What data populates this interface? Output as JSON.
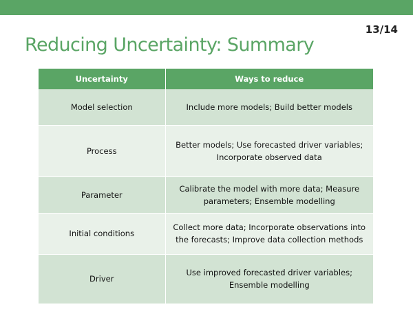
{
  "slide": {
    "title": "Reducing Uncertainty: Summary",
    "page_number": "13/14",
    "accent_color": "#5aa565"
  },
  "table": {
    "headers": [
      "Uncertainty",
      "Ways to reduce"
    ],
    "rows": [
      {
        "uncertainty": "Model selection",
        "ways": "Include more models; Build better models"
      },
      {
        "uncertainty": "Process",
        "ways": "Better models; Use forecasted driver variables; Incorporate observed data"
      },
      {
        "uncertainty": "Parameter",
        "ways": "Calibrate the model with more data; Measure parameters; Ensemble modelling"
      },
      {
        "uncertainty": "Initial conditions",
        "ways": "Collect more data; Incorporate observations into the forecasts; Improve data collection methods"
      },
      {
        "uncertainty": "Driver",
        "ways": "Use improved forecasted driver variables; Ensemble modelling"
      }
    ]
  }
}
